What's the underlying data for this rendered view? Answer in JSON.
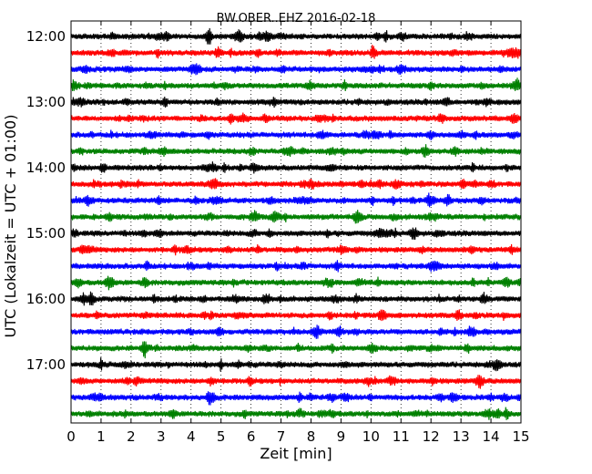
{
  "chart_data": {
    "type": "line",
    "title": "BW.OBER..EHZ 2016-02-18",
    "xlabel": "Zeit  [min]",
    "ylabel": "UTC (Lokalzeit = UTC + 01:00)",
    "xlim": [
      0,
      15
    ],
    "x_ticks": [
      "0",
      "1",
      "2",
      "3",
      "4",
      "5",
      "6",
      "7",
      "8",
      "9",
      "10",
      "11",
      "12",
      "13",
      "14",
      "15"
    ],
    "y_ticks": [
      "12:00",
      "13:00",
      "14:00",
      "15:00",
      "16:00",
      "17:00"
    ],
    "grid": "vertical dotted at each minute",
    "trace_colors": [
      "#000000",
      "#ff0000",
      "#0000ff",
      "#008000"
    ],
    "series": [
      {
        "start": "12:00",
        "color": "#000000"
      },
      {
        "start": "12:15",
        "color": "#ff0000"
      },
      {
        "start": "12:30",
        "color": "#0000ff"
      },
      {
        "start": "12:45",
        "color": "#008000"
      },
      {
        "start": "13:00",
        "color": "#000000"
      },
      {
        "start": "13:15",
        "color": "#ff0000"
      },
      {
        "start": "13:30",
        "color": "#0000ff"
      },
      {
        "start": "13:45",
        "color": "#008000"
      },
      {
        "start": "14:00",
        "color": "#000000"
      },
      {
        "start": "14:15",
        "color": "#ff0000"
      },
      {
        "start": "14:30",
        "color": "#0000ff"
      },
      {
        "start": "14:45",
        "color": "#008000"
      },
      {
        "start": "15:00",
        "color": "#000000"
      },
      {
        "start": "15:15",
        "color": "#ff0000"
      },
      {
        "start": "15:30",
        "color": "#0000ff"
      },
      {
        "start": "15:45",
        "color": "#008000"
      },
      {
        "start": "16:00",
        "color": "#000000"
      },
      {
        "start": "16:15",
        "color": "#ff0000"
      },
      {
        "start": "16:30",
        "color": "#0000ff"
      },
      {
        "start": "16:45",
        "color": "#008000"
      },
      {
        "start": "17:00",
        "color": "#000000"
      },
      {
        "start": "17:15",
        "color": "#ff0000"
      },
      {
        "start": "17:30",
        "color": "#0000ff"
      },
      {
        "start": "17:45",
        "color": "#008000"
      }
    ]
  }
}
